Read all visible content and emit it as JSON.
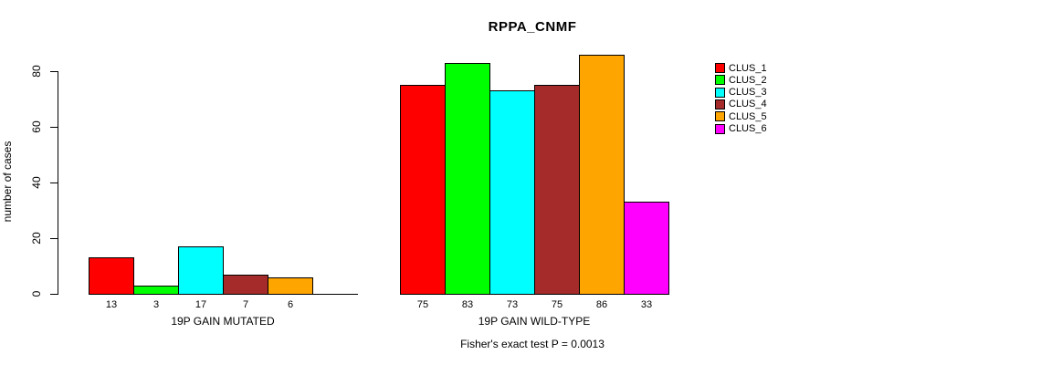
{
  "title": "RPPA_CNMF",
  "y_axis": {
    "label": "number of cases",
    "tick_labels": [
      "0",
      "20",
      "40",
      "60",
      "80"
    ]
  },
  "footer": "Fisher's exact test P = 0.0013",
  "legend": {
    "position": "right",
    "items": [
      {
        "label": "CLUS_1",
        "color": "#FF0000"
      },
      {
        "label": "CLUS_2",
        "color": "#00FF00"
      },
      {
        "label": "CLUS_3",
        "color": "#00FFFF"
      },
      {
        "label": "CLUS_4",
        "color": "#A52A2A"
      },
      {
        "label": "CLUS_5",
        "color": "#FFA500"
      },
      {
        "label": "CLUS_6",
        "color": "#FF00FF"
      }
    ]
  },
  "chart_data": {
    "type": "bar",
    "title": "RPPA_CNMF",
    "xlabel": "",
    "ylabel": "number of cases",
    "ylim": [
      0,
      88
    ],
    "yticks": [
      0,
      20,
      40,
      60,
      80
    ],
    "grid": false,
    "legend_position": "right",
    "bar_border_color": "#000000",
    "series_names": [
      "CLUS_1",
      "CLUS_2",
      "CLUS_3",
      "CLUS_4",
      "CLUS_5",
      "CLUS_6"
    ],
    "series_colors": [
      "#FF0000",
      "#00FF00",
      "#00FFFF",
      "#A52A2A",
      "#FFA500",
      "#FF00FF"
    ],
    "categories": [
      "19P GAIN MUTATED",
      "19P GAIN WILD-TYPE"
    ],
    "series": [
      {
        "name": "CLUS_1",
        "values": [
          13,
          75
        ]
      },
      {
        "name": "CLUS_2",
        "values": [
          3,
          83
        ]
      },
      {
        "name": "CLUS_3",
        "values": [
          17,
          73
        ]
      },
      {
        "name": "CLUS_4",
        "values": [
          7,
          75
        ]
      },
      {
        "name": "CLUS_5",
        "values": [
          6,
          86
        ]
      },
      {
        "name": "CLUS_6",
        "values": [
          0,
          33
        ]
      }
    ],
    "groups": [
      {
        "label": "19P GAIN MUTATED",
        "values": [
          13,
          3,
          17,
          7,
          6,
          0
        ],
        "value_labels": [
          "13",
          "3",
          "17",
          "7",
          "6",
          ""
        ]
      },
      {
        "label": "19P GAIN WILD-TYPE",
        "values": [
          75,
          83,
          73,
          75,
          86,
          33
        ],
        "value_labels": [
          "75",
          "83",
          "73",
          "75",
          "86",
          "33"
        ]
      }
    ],
    "annotation": "Fisher's exact test P = 0.0013"
  }
}
